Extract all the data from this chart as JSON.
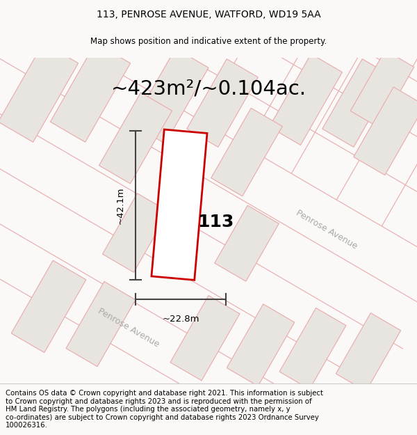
{
  "title_line1": "113, PENROSE AVENUE, WATFORD, WD19 5AA",
  "title_line2": "Map shows position and indicative extent of the property.",
  "area_text": "~423m²/~0.104ac.",
  "property_number": "113",
  "dim_height": "~42.1m",
  "dim_width": "~22.8m",
  "footer_text": "Contains OS data © Crown copyright and database right 2021. This information is subject\nto Crown copyright and database rights 2023 and is reproduced with the permission of\nHM Land Registry. The polygons (including the associated geometry, namely x, y\nco-ordinates) are subject to Crown copyright and database rights 2023 Ordnance Survey\n100026316.",
  "map_bg": "#faf9f8",
  "building_fill": "#e8e4e0",
  "building_stroke": "#e8aaaa",
  "highlight_stroke": "#cc0000",
  "road_line_color": "#e8aaaa",
  "dim_line_color": "#444444",
  "road_band_fill": "#f5f2f0",
  "street_label_color": "#aaaaaa",
  "title_fontsize": 10,
  "area_fontsize": 20,
  "footer_fontsize": 7.5
}
